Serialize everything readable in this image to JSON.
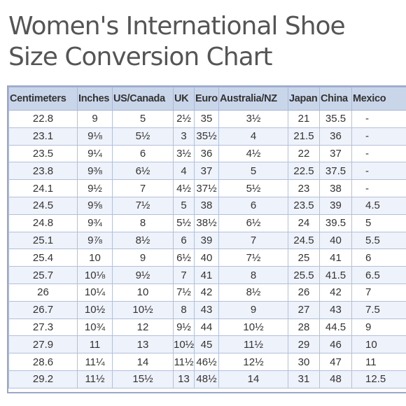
{
  "title_line1": "Women's International Shoe",
  "title_line2": "Size Conversion Chart",
  "table": {
    "headers": [
      "Centimeters",
      "Inches",
      "US/Canada",
      "UK",
      "Euro",
      "Australia/NZ",
      "Japan",
      "China",
      "Mexico"
    ],
    "rows": [
      [
        "22.8",
        "9",
        "5",
        "2½",
        "35",
        "3½",
        "21",
        "35.5",
        "-"
      ],
      [
        "23.1",
        "9⅛",
        "5½",
        "3",
        "35½",
        "4",
        "21.5",
        "36",
        "-"
      ],
      [
        "23.5",
        "9¼",
        "6",
        "3½",
        "36",
        "4½",
        "22",
        "37",
        "-"
      ],
      [
        "23.8",
        "9⅜",
        "6½",
        "4",
        "37",
        "5",
        "22.5",
        "37.5",
        "-"
      ],
      [
        "24.1",
        "9½",
        "7",
        "4½",
        "37½",
        "5½",
        "23",
        "38",
        "-"
      ],
      [
        "24.5",
        "9⅝",
        "7½",
        "5",
        "38",
        "6",
        "23.5",
        "39",
        "4.5"
      ],
      [
        "24.8",
        "9¾",
        "8",
        "5½",
        "38½",
        "6½",
        "24",
        "39.5",
        "5"
      ],
      [
        "25.1",
        "9⅞",
        "8½",
        "6",
        "39",
        "7",
        "24.5",
        "40",
        "5.5"
      ],
      [
        "25.4",
        "10",
        "9",
        "6½",
        "40",
        "7½",
        "25",
        "41",
        "6"
      ],
      [
        "25.7",
        "10⅛",
        "9½",
        "7",
        "41",
        "8",
        "25.5",
        "41.5",
        "6.5"
      ],
      [
        "26",
        "10¼",
        "10",
        "7½",
        "42",
        "8½",
        "26",
        "42",
        "7"
      ],
      [
        "26.7",
        "10½",
        "10½",
        "8",
        "43",
        "9",
        "27",
        "43",
        "7.5"
      ],
      [
        "27.3",
        "10¾",
        "12",
        "9½",
        "44",
        "10½",
        "28",
        "44.5",
        "9"
      ],
      [
        "27.9",
        "11",
        "13",
        "10½",
        "45",
        "11½",
        "29",
        "46",
        "10"
      ],
      [
        "28.6",
        "11¼",
        "14",
        "11½",
        "46½",
        "12½",
        "30",
        "47",
        "11"
      ],
      [
        "29.2",
        "11½",
        "15½",
        "13",
        "48½",
        "14",
        "31",
        "48",
        "12.5"
      ]
    ]
  }
}
